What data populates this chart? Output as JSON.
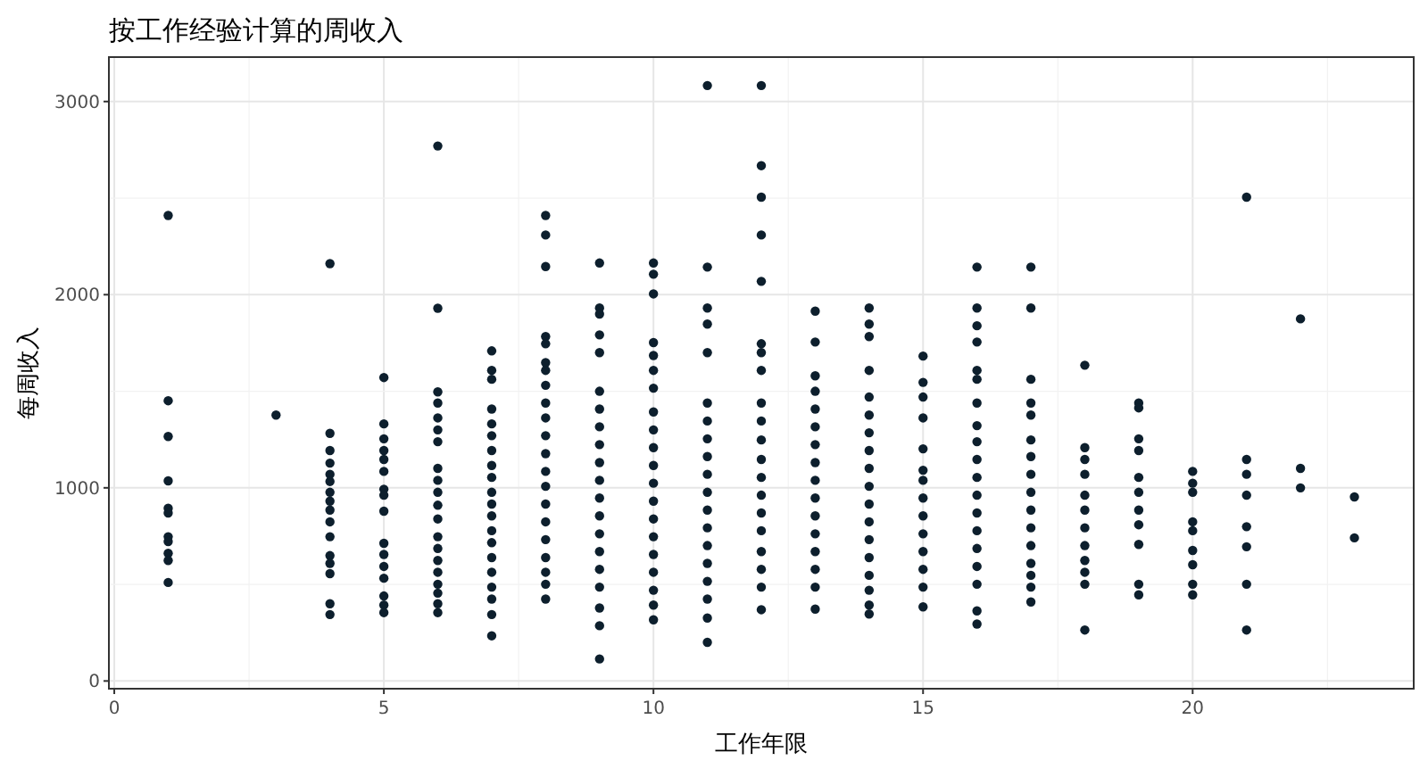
{
  "chart_data": {
    "type": "scatter",
    "title": "按工作经验计算的周收入",
    "xlabel": "工作年限",
    "ylabel": "每周收入",
    "color": "#0d1f2d",
    "marker": "circle",
    "grid": true,
    "xlim": [
      -0.1,
      24.1
    ],
    "ylim": [
      -40,
      3230
    ],
    "xticks": [
      0,
      5,
      10,
      15,
      20
    ],
    "yticks": [
      0,
      1000,
      2000,
      3000
    ],
    "x": [
      1,
      1,
      1,
      1,
      1,
      1,
      1,
      1,
      1,
      1,
      1,
      3,
      4,
      4,
      4,
      4,
      4,
      4,
      4,
      4,
      4,
      4,
      4,
      4,
      4,
      4,
      4,
      4,
      5,
      5,
      5,
      5,
      5,
      5,
      5,
      5,
      5,
      5,
      5,
      5,
      5,
      5,
      5,
      5,
      6,
      6,
      6,
      6,
      6,
      6,
      6,
      6,
      6,
      6,
      6,
      6,
      6,
      6,
      6,
      6,
      6,
      6,
      6,
      6,
      7,
      7,
      7,
      7,
      7,
      7,
      7,
      7,
      7,
      7,
      7,
      7,
      7,
      7,
      7,
      7,
      7,
      7,
      7,
      7,
      8,
      8,
      8,
      8,
      8,
      8,
      8,
      8,
      8,
      8,
      8,
      8,
      8,
      8,
      8,
      8,
      8,
      8,
      8,
      8,
      8,
      9,
      9,
      9,
      9,
      9,
      9,
      9,
      9,
      9,
      9,
      9,
      9,
      9,
      9,
      9,
      9,
      9,
      9,
      9,
      9,
      10,
      10,
      10,
      10,
      10,
      10,
      10,
      10,
      10,
      10,
      10,
      10,
      10,
      10,
      10,
      10,
      10,
      10,
      10,
      10,
      11,
      11,
      11,
      11,
      11,
      11,
      11,
      11,
      11,
      11,
      11,
      11,
      11,
      11,
      11,
      11,
      11,
      11,
      11,
      12,
      12,
      12,
      12,
      12,
      12,
      12,
      12,
      12,
      12,
      12,
      12,
      12,
      12,
      12,
      12,
      12,
      12,
      12,
      12,
      13,
      13,
      13,
      13,
      13,
      13,
      13,
      13,
      13,
      13,
      13,
      13,
      13,
      13,
      13,
      13,
      14,
      14,
      14,
      14,
      14,
      14,
      14,
      14,
      14,
      14,
      14,
      14,
      14,
      14,
      14,
      14,
      14,
      14,
      15,
      15,
      15,
      15,
      15,
      15,
      15,
      15,
      15,
      15,
      15,
      15,
      15,
      15,
      16,
      16,
      16,
      16,
      16,
      16,
      16,
      16,
      16,
      16,
      16,
      16,
      16,
      16,
      16,
      16,
      16,
      16,
      16,
      17,
      17,
      17,
      17,
      17,
      17,
      17,
      17,
      17,
      17,
      17,
      17,
      17,
      17,
      17,
      17,
      18,
      18,
      18,
      18,
      18,
      18,
      18,
      18,
      18,
      18,
      18,
      18,
      19,
      19,
      19,
      19,
      19,
      19,
      19,
      19,
      19,
      19,
      19,
      20,
      20,
      20,
      20,
      20,
      20,
      20,
      20,
      20,
      21,
      21,
      21,
      21,
      21,
      21,
      21,
      21,
      22,
      22,
      22,
      23,
      23
    ],
    "values": [
      2410,
      1451,
      1266,
      1036,
      894,
      870,
      747,
      722,
      661,
      624,
      510,
      1377,
      2161,
      1282,
      1193,
      1128,
      1070,
      1033,
      977,
      931,
      885,
      824,
      747,
      649,
      609,
      556,
      400,
      344,
      1571,
      1331,
      1254,
      1193,
      1147,
      1085,
      993,
      962,
      879,
      713,
      655,
      593,
      532,
      440,
      393,
      354,
      2770,
      1930,
      1497,
      1439,
      1362,
      1300,
      1239,
      1101,
      1039,
      977,
      910,
      839,
      747,
      686,
      624,
      563,
      501,
      455,
      400,
      354,
      1709,
      1608,
      1562,
      1408,
      1331,
      1270,
      1193,
      1116,
      1054,
      977,
      916,
      855,
      778,
      716,
      639,
      563,
      486,
      424,
      344,
      234,
      2410,
      2309,
      2146,
      1783,
      1746,
      1648,
      1608,
      1531,
      1439,
      1362,
      1270,
      1177,
      1085,
      1008,
      916,
      824,
      732,
      639,
      563,
      501,
      424,
      2164,
      1931,
      1900,
      1792,
      1700,
      1500,
      1408,
      1316,
      1224,
      1131,
      1039,
      947,
      855,
      762,
      670,
      578,
      486,
      378,
      286,
      114,
      2164,
      2106,
      2004,
      1752,
      1685,
      1608,
      1516,
      1393,
      1300,
      1208,
      1116,
      1024,
      931,
      839,
      747,
      655,
      563,
      470,
      393,
      317,
      3083,
      2143,
      1931,
      1848,
      1700,
      1439,
      1346,
      1254,
      1162,
      1070,
      977,
      885,
      793,
      701,
      609,
      516,
      424,
      326,
      200,
      3083,
      2668,
      2505,
      2309,
      2069,
      1746,
      1700,
      1608,
      1439,
      1346,
      1248,
      1147,
      1054,
      962,
      870,
      778,
      670,
      578,
      486,
      369,
      1915,
      1755,
      1580,
      1500,
      1408,
      1316,
      1224,
      1131,
      1039,
      947,
      855,
      762,
      670,
      578,
      486,
      372,
      1931,
      1848,
      1783,
      1608,
      1470,
      1377,
      1285,
      1193,
      1101,
      1008,
      916,
      824,
      732,
      639,
      547,
      470,
      393,
      347,
      1682,
      1546,
      1470,
      1362,
      1202,
      1091,
      1039,
      947,
      855,
      762,
      670,
      578,
      486,
      384,
      2143,
      1931,
      1839,
      1755,
      1608,
      1562,
      1439,
      1322,
      1239,
      1147,
      1054,
      962,
      870,
      778,
      686,
      593,
      501,
      363,
      295,
      2143,
      1931,
      1562,
      1439,
      1377,
      1248,
      1162,
      1070,
      977,
      885,
      793,
      701,
      609,
      547,
      486,
      409,
      1635,
      1208,
      1147,
      1070,
      962,
      885,
      793,
      701,
      624,
      563,
      501,
      264,
      1439,
      1414,
      1254,
      1193,
      1054,
      977,
      885,
      809,
      707,
      501,
      446,
      1085,
      1024,
      977,
      824,
      778,
      676,
      602,
      501,
      446,
      2505,
      1147,
      1070,
      962,
      799,
      695,
      501,
      264,
      1875,
      1101,
      1000,
      953,
      741
    ]
  }
}
